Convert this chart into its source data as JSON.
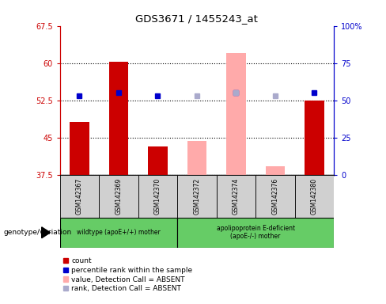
{
  "title": "GDS3671 / 1455243_at",
  "samples": [
    "GSM142367",
    "GSM142369",
    "GSM142370",
    "GSM142372",
    "GSM142374",
    "GSM142376",
    "GSM142380"
  ],
  "ylim_left": [
    37.5,
    67.5
  ],
  "ylim_right": [
    0,
    100
  ],
  "yticks_left": [
    37.5,
    45.0,
    52.5,
    60.0,
    67.5
  ],
  "ytick_labels_left": [
    "37.5",
    "45",
    "52.5",
    "60",
    "67.5"
  ],
  "ytick_labels_right": [
    "0",
    "25",
    "50",
    "75",
    "100%"
  ],
  "yticks_right": [
    0,
    25,
    50,
    75,
    100
  ],
  "count_values": [
    48.2,
    60.3,
    43.2,
    null,
    null,
    null,
    52.5
  ],
  "absent_value_values": [
    null,
    null,
    null,
    44.3,
    62.0,
    39.2,
    null
  ],
  "percentile_rank": [
    53.0,
    55.0,
    53.0,
    null,
    55.0,
    null,
    55.0
  ],
  "absent_rank_values": [
    null,
    null,
    null,
    53.0,
    55.0,
    53.0,
    null
  ],
  "group1_label": "wildtype (apoE+/+) mother",
  "group2_label": "apolipoprotein E-deficient\n(apoE-/-) mother",
  "group1_count": 3,
  "genotype_label": "genotype/variation",
  "bar_color_red": "#cc0000",
  "bar_color_pink": "#ffaaaa",
  "dot_color_blue": "#0000cc",
  "dot_color_lightblue": "#aaaacc",
  "axis_color_left": "#cc0000",
  "axis_color_right": "#0000cc",
  "legend_colors": [
    "#cc0000",
    "#0000cc",
    "#ffaaaa",
    "#aaaacc"
  ],
  "legend_labels": [
    "count",
    "percentile rank within the sample",
    "value, Detection Call = ABSENT",
    "rank, Detection Call = ABSENT"
  ],
  "group_fill": "#66cc66",
  "sample_box_fill": "#d0d0d0"
}
